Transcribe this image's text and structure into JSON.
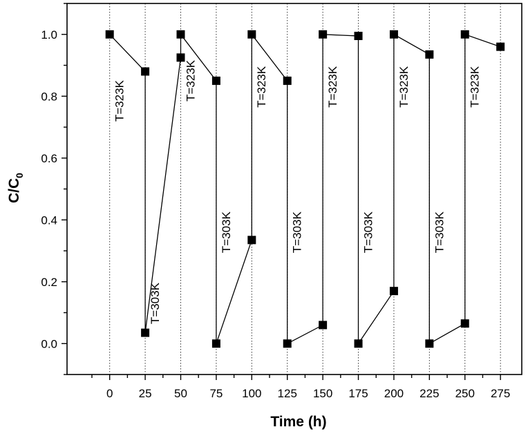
{
  "chart_data": {
    "type": "line",
    "xlabel": "Time (h)",
    "ylabel_main": "C/C",
    "ylabel_sub": "0",
    "xlim": [
      -30,
      290
    ],
    "ylim": [
      -0.1,
      1.1
    ],
    "x_ticks": [
      0,
      25,
      50,
      75,
      100,
      125,
      150,
      175,
      200,
      225,
      250,
      275
    ],
    "y_ticks": [
      0.0,
      0.2,
      0.4,
      0.6,
      0.8,
      1.0
    ],
    "y_tick_labels": [
      "0.0",
      "0.2",
      "0.4",
      "0.6",
      "0.8",
      "1.0"
    ],
    "vertical_lines_at": [
      0,
      25,
      50,
      75,
      100,
      125,
      150,
      175,
      200,
      225,
      250,
      275
    ],
    "series": [
      {
        "x": [
          0,
          25,
          25,
          50,
          50,
          75,
          75,
          100,
          100,
          125,
          125,
          150,
          150,
          175,
          175,
          200,
          200,
          225,
          225,
          250,
          250,
          275
        ],
        "y": [
          1.0,
          0.88,
          0.035,
          0.925,
          1.0,
          0.85,
          0.0,
          0.335,
          1.0,
          0.85,
          0.0,
          0.06,
          1.0,
          0.995,
          0.0,
          0.17,
          1.0,
          0.935,
          0.0,
          0.065,
          1.0,
          0.96
        ]
      }
    ],
    "annotations": [
      {
        "text": "T=323K",
        "x": 7.5,
        "y": 0.785
      },
      {
        "text": "T=303K",
        "x": 32.5,
        "y": 0.13
      },
      {
        "text": "T=323K",
        "x": 57.5,
        "y": 0.85
      },
      {
        "text": "T=303K",
        "x": 82.5,
        "y": 0.36
      },
      {
        "text": "T=323K",
        "x": 107.5,
        "y": 0.83
      },
      {
        "text": "T=303K",
        "x": 132.5,
        "y": 0.36
      },
      {
        "text": "T=323K",
        "x": 157.5,
        "y": 0.83
      },
      {
        "text": "T=303K",
        "x": 182.5,
        "y": 0.36
      },
      {
        "text": "T=323K",
        "x": 207.5,
        "y": 0.83
      },
      {
        "text": "T=303K",
        "x": 232.5,
        "y": 0.36
      },
      {
        "text": "T=323K",
        "x": 257.5,
        "y": 0.83
      }
    ]
  }
}
